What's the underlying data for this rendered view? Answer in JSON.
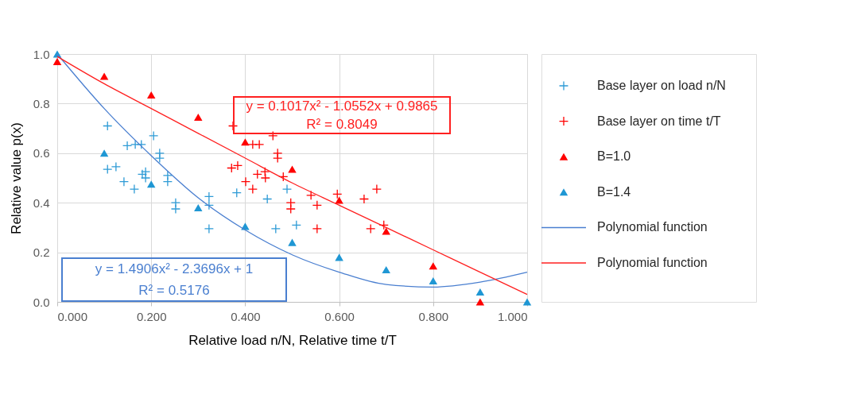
{
  "chart_data": {
    "type": "scatter",
    "xlabel": "Relative load n/N,  Relative time t/T",
    "ylabel": "Relative value p(x)",
    "xlim": [
      0,
      1
    ],
    "ylim": [
      0,
      1
    ],
    "xticks": [
      {
        "value": 0,
        "label": "0.000"
      },
      {
        "value": 0.2,
        "label": "0.200"
      },
      {
        "value": 0.4,
        "label": "0.400"
      },
      {
        "value": 0.6,
        "label": "0.600"
      },
      {
        "value": 0.8,
        "label": "0.800"
      },
      {
        "value": 1,
        "label": "1.000"
      }
    ],
    "yticks": [
      {
        "value": 0,
        "label": "0.0"
      },
      {
        "value": 0.2,
        "label": "0.2"
      },
      {
        "value": 0.4,
        "label": "0.4"
      },
      {
        "value": 0.6,
        "label": "0.6"
      },
      {
        "value": 0.8,
        "label": "0.8"
      },
      {
        "value": 1,
        "label": "1.0"
      }
    ],
    "grid": true,
    "legend": "right",
    "annotations": [
      "y = 0.1017x² - 1.0552x + 0.9865\nR² = 0.8049",
      "y = 1.4906x² - 2.3696x + 1\nR² = 0.5176"
    ],
    "series": [
      {
        "name": "Base layer on load n/N",
        "marker": "cross",
        "color": "#2e9bd6",
        "x": [
          0.107,
          0.149,
          0.166,
          0.179,
          0.205,
          0.218,
          0.218,
          0.107,
          0.125,
          0.142,
          0.164,
          0.181,
          0.188,
          0.188,
          0.235,
          0.235,
          0.252,
          0.252,
          0.323,
          0.323,
          0.323,
          0.382,
          0.447,
          0.465,
          0.489,
          0.509
        ],
        "values": [
          0.71,
          0.63,
          0.635,
          0.635,
          0.67,
          0.6,
          0.58,
          0.535,
          0.545,
          0.485,
          0.455,
          0.515,
          0.525,
          0.5,
          0.51,
          0.485,
          0.4,
          0.375,
          0.425,
          0.39,
          0.295,
          0.44,
          0.415,
          0.295,
          0.455,
          0.31
        ]
      },
      {
        "name": "Base layer on time t/T",
        "marker": "cross",
        "color": "#ff0000",
        "x": [
          0.374,
          0.459,
          0.416,
          0.43,
          0.469,
          0.469,
          0.371,
          0.384,
          0.401,
          0.416,
          0.426,
          0.442,
          0.443,
          0.481,
          0.497,
          0.497,
          0.54,
          0.553,
          0.553,
          0.596,
          0.653,
          0.68,
          0.667,
          0.695
        ],
        "values": [
          0.71,
          0.67,
          0.635,
          0.635,
          0.6,
          0.58,
          0.54,
          0.55,
          0.485,
          0.455,
          0.515,
          0.525,
          0.5,
          0.505,
          0.4,
          0.375,
          0.43,
          0.39,
          0.295,
          0.435,
          0.415,
          0.455,
          0.295,
          0.31
        ]
      },
      {
        "name": "B=1.0",
        "marker": "triangle",
        "color": "#ff0000",
        "x": [
          0,
          0.1,
          0.2,
          0.3,
          0.4,
          0.5,
          0.6,
          0.7,
          0.8,
          0.9
        ],
        "values": [
          0.97,
          0.91,
          0.835,
          0.745,
          0.645,
          0.535,
          0.41,
          0.285,
          0.145,
          0.0
        ]
      },
      {
        "name": "B=1.4",
        "marker": "triangle",
        "color": "#1f97d4",
        "x": [
          0,
          0.1,
          0.2,
          0.3,
          0.4,
          0.5,
          0.6,
          0.7,
          0.8,
          0.9,
          1.0
        ],
        "values": [
          1.0,
          0.6,
          0.475,
          0.38,
          0.305,
          0.24,
          0.18,
          0.13,
          0.085,
          0.04,
          0.0
        ]
      },
      {
        "name": "Polynomial function",
        "type": "line",
        "marker": "none",
        "color": "#4a7fd0",
        "x": [
          0,
          0.1,
          0.2,
          0.3,
          0.4,
          0.5,
          0.6,
          0.7,
          0.8,
          0.9,
          1.0
        ],
        "values": [
          1.0,
          0.78,
          0.59,
          0.42,
          0.29,
          0.19,
          0.12,
          0.07,
          0.06,
          0.08,
          0.12
        ]
      },
      {
        "name": "Polynomial function",
        "type": "line",
        "marker": "none",
        "color": "#ff2020",
        "x": [
          0,
          0.1,
          0.2,
          0.3,
          0.4,
          0.5,
          0.6,
          0.7,
          0.8,
          0.9,
          1.0
        ],
        "values": [
          0.99,
          0.88,
          0.78,
          0.68,
          0.58,
          0.48,
          0.39,
          0.3,
          0.21,
          0.12,
          0.03
        ]
      }
    ]
  }
}
